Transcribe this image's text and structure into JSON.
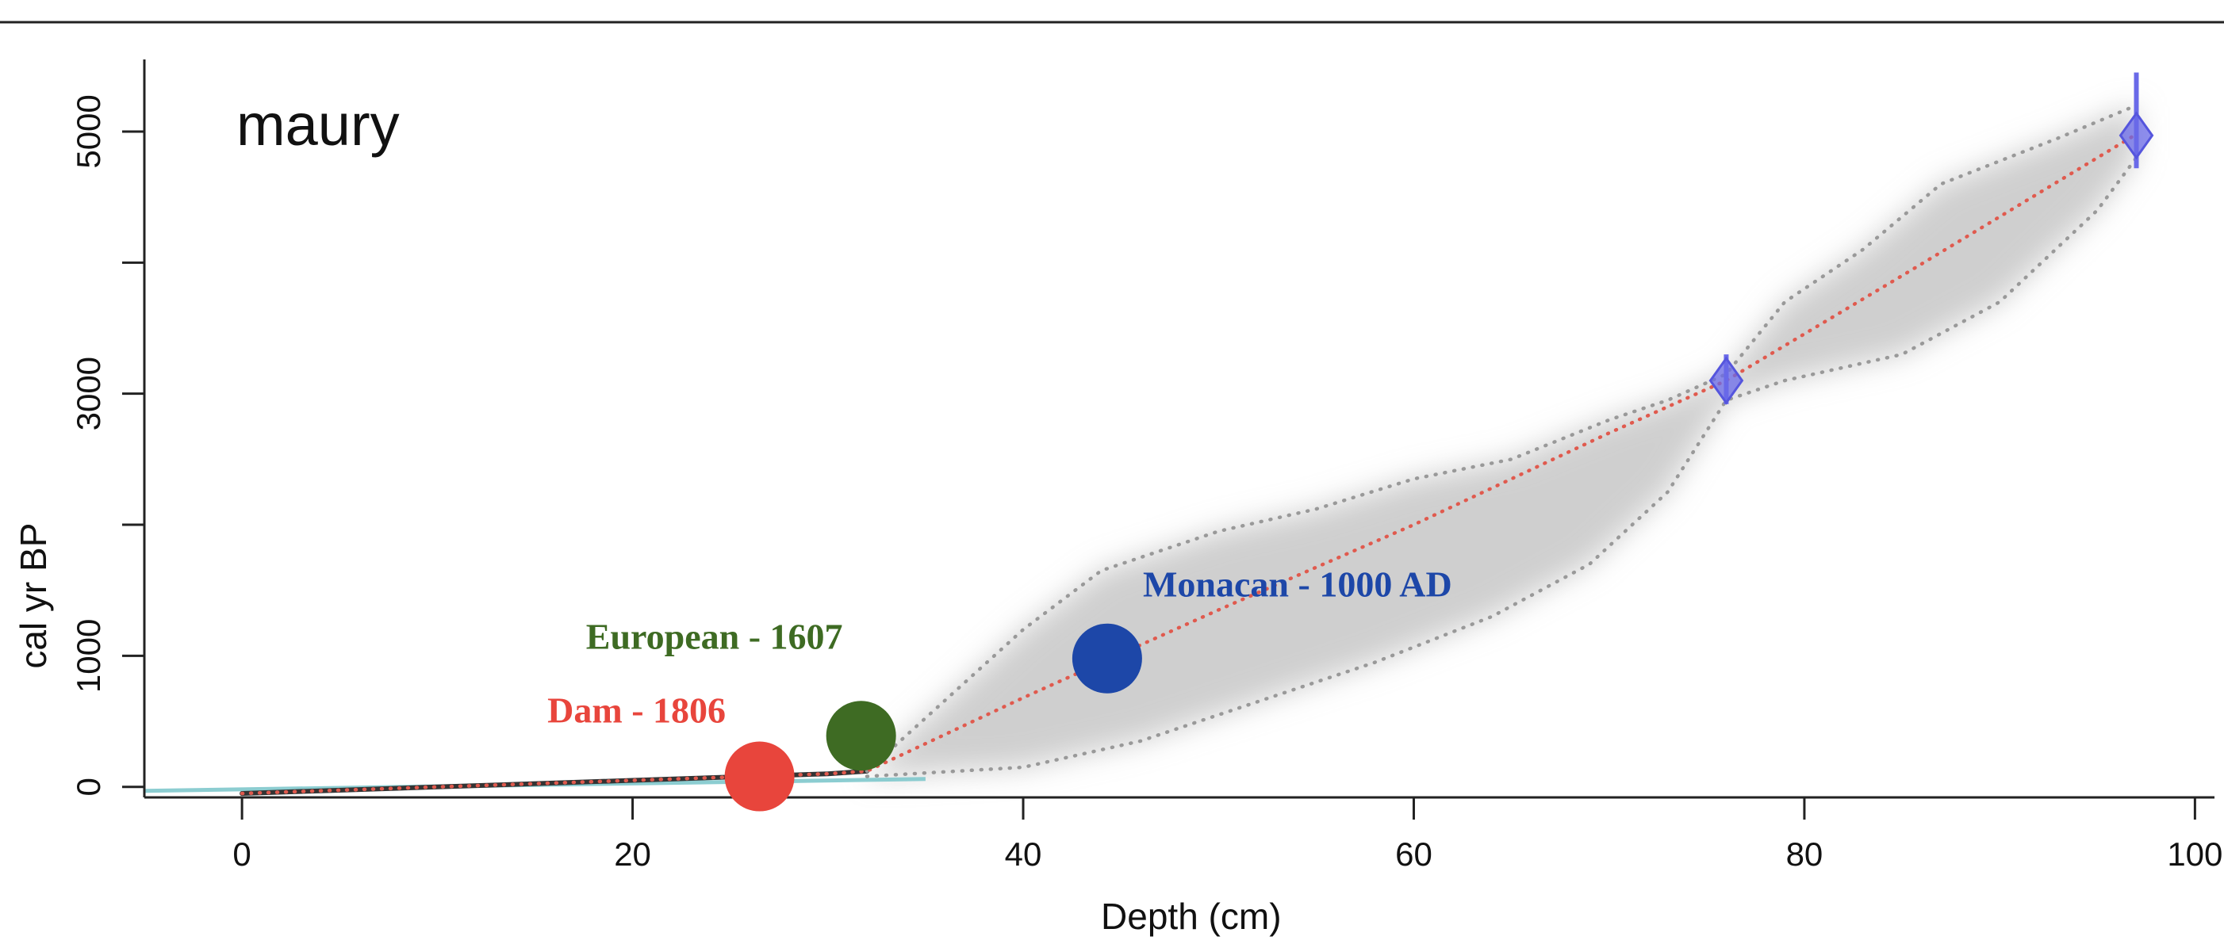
{
  "chart_data": {
    "type": "line",
    "title": "maury",
    "xlabel": "Depth (cm)",
    "ylabel": "cal yr BP",
    "xlim": [
      -5,
      101
    ],
    "ylim": [
      -80,
      5550
    ],
    "x_ticks": [
      0,
      20,
      40,
      60,
      80,
      100
    ],
    "y_ticks": [
      0,
      1000,
      3000,
      5000
    ],
    "y_minor_ticks": [
      2000,
      4000
    ],
    "grid": false,
    "series": [
      {
        "role": "age-depth model",
        "style": "dotted",
        "color": "#e05a4e",
        "x": [
          0,
          10,
          20,
          30,
          32,
          40,
          50,
          60,
          70,
          76,
          85,
          97
        ],
        "y": [
          -50,
          0,
          50,
          100,
          120,
          680,
          1350,
          2000,
          2700,
          3100,
          3900,
          4980
        ]
      },
      {
        "role": "upper confidence bound",
        "style": "dotted",
        "color": "#999999",
        "x": [
          32,
          40,
          44,
          50,
          55,
          60,
          65,
          70,
          73,
          76,
          79,
          83,
          87,
          93,
          97
        ],
        "y": [
          120,
          1200,
          1650,
          1950,
          2120,
          2350,
          2500,
          2800,
          2950,
          3150,
          3700,
          4100,
          4600,
          4950,
          5200
        ]
      },
      {
        "role": "lower confidence bound",
        "style": "dotted",
        "color": "#999999",
        "x": [
          32,
          40,
          46,
          52,
          58,
          64,
          69,
          73,
          76,
          79,
          85,
          90,
          95,
          97
        ],
        "y": [
          80,
          150,
          350,
          650,
          950,
          1300,
          1700,
          2250,
          2950,
          3100,
          3300,
          3700,
          4400,
          4800
        ]
      }
    ],
    "dated_samples": [
      {
        "x": 76,
        "y": 3100,
        "y_err": [
          2920,
          3300
        ]
      },
      {
        "x": 97,
        "y": 4970,
        "y_err": [
          4720,
          5450
        ]
      }
    ],
    "surface_calibration": {
      "x": [
        -5,
        35
      ],
      "y": [
        -30,
        60
      ]
    },
    "markers": [
      {
        "label": "Dam - 1806",
        "x": 26.5,
        "y": 80,
        "color": "#e8453c"
      },
      {
        "label": "European - 1607",
        "x": 31.7,
        "y": 390,
        "color": "#3e6b23"
      },
      {
        "label": "Monacan - 1000 AD",
        "x": 44.3,
        "y": 980,
        "color": "#1d47a8"
      }
    ]
  }
}
